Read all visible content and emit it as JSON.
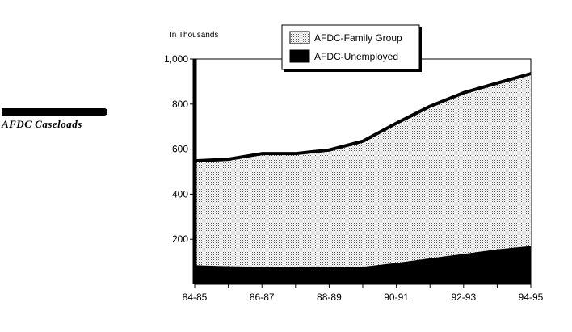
{
  "sidebar": {
    "title": "AFDC Caseloads"
  },
  "chart_data": {
    "type": "area",
    "stacked": true,
    "units_label": "In Thousands",
    "ylim": [
      0,
      1000
    ],
    "yticks": [
      200,
      400,
      600,
      800,
      1000
    ],
    "ytick_labels": [
      "200",
      "400",
      "600",
      "800",
      "1,000"
    ],
    "x_labels": [
      "84-85",
      "86-87",
      "88-89",
      "90-91",
      "92-93",
      "94-95"
    ],
    "x": [
      "84-85",
      "85-86",
      "86-87",
      "87-88",
      "88-89",
      "89-90",
      "90-91",
      "91-92",
      "92-93",
      "93-94",
      "94-95"
    ],
    "series": [
      {
        "name": "AFDC-Unemployed",
        "values": [
          85,
          80,
          78,
          76,
          76,
          78,
          95,
          115,
          135,
          155,
          170
        ],
        "color": "#000000"
      },
      {
        "name": "AFDC-Family Group",
        "values": [
          463,
          475,
          502,
          504,
          520,
          557,
          620,
          675,
          715,
          738,
          765
        ],
        "color": "#d9d9d9"
      }
    ],
    "legend": {
      "position": "top",
      "entries": [
        "AFDC-Family Group",
        "AFDC-Unemployed"
      ]
    }
  }
}
